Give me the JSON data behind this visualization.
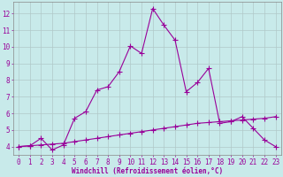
{
  "xlabel": "Windchill (Refroidissement éolien,°C)",
  "background_color": "#c8eaea",
  "grid_color": "#b0c8c8",
  "line_color": "#990099",
  "x_line1": [
    0,
    1,
    2,
    3,
    4,
    5,
    6,
    7,
    8,
    9,
    10,
    11,
    12,
    13,
    14,
    15,
    16,
    17,
    18,
    19,
    20,
    21,
    22,
    23
  ],
  "y_line1": [
    4.0,
    4.05,
    4.5,
    3.8,
    4.1,
    5.7,
    6.1,
    7.4,
    7.6,
    8.5,
    10.05,
    9.6,
    12.3,
    11.3,
    10.4,
    7.3,
    7.85,
    8.7,
    5.4,
    5.5,
    5.8,
    5.1,
    4.4,
    4.0
  ],
  "x_line2": [
    0,
    1,
    2,
    3,
    4,
    5,
    6,
    7,
    8,
    9,
    10,
    11,
    12,
    13,
    14,
    15,
    16,
    17,
    18,
    19,
    20,
    21,
    22,
    23
  ],
  "y_line2": [
    4.0,
    4.05,
    4.1,
    4.15,
    4.2,
    4.3,
    4.4,
    4.5,
    4.6,
    4.7,
    4.8,
    4.9,
    5.0,
    5.1,
    5.2,
    5.3,
    5.4,
    5.45,
    5.5,
    5.55,
    5.6,
    5.65,
    5.7,
    5.8
  ],
  "xlim": [
    -0.5,
    23.5
  ],
  "ylim": [
    3.5,
    12.7
  ],
  "yticks": [
    4,
    5,
    6,
    7,
    8,
    9,
    10,
    11,
    12
  ],
  "xticks": [
    0,
    1,
    2,
    3,
    4,
    5,
    6,
    7,
    8,
    9,
    10,
    11,
    12,
    13,
    14,
    15,
    16,
    17,
    18,
    19,
    20,
    21,
    22,
    23
  ],
  "tick_fontsize": 5.5,
  "label_fontsize": 5.5
}
